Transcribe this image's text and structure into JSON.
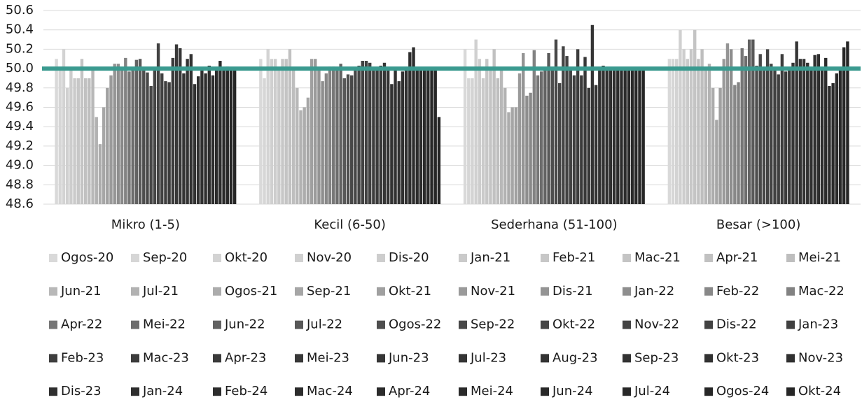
{
  "chart_data": {
    "type": "bar",
    "categories": [
      "Mikro (1-5)",
      "Kecil (6-50)",
      "Sederhana (51-100)",
      "Besar (>100)"
    ],
    "ylim": [
      48.6,
      50.6
    ],
    "yticks": [
      48.6,
      48.8,
      {
        "value": 49,
        "label": "49.0"
      },
      49.2,
      49.4,
      49.6,
      49.8,
      {
        "value": 50,
        "label": "50.0"
      },
      50.2,
      50.4,
      50.6
    ],
    "grid": true,
    "reference_line": {
      "value": 50,
      "color": "#3a9a8f"
    },
    "series": [
      {
        "name": "Ogos-20",
        "color": "#d9d9d9",
        "values": [
          50.1,
          50.1,
          50.2,
          50.1
        ]
      },
      {
        "name": "Sep-20",
        "color": "#d6d6d6",
        "values": [
          50.0,
          49.9,
          49.9,
          50.1
        ]
      },
      {
        "name": "Okt-20",
        "color": "#d3d3d3",
        "values": [
          50.2,
          50.2,
          49.9,
          50.1
        ]
      },
      {
        "name": "Nov-20",
        "color": "#d0d0d0",
        "values": [
          49.8,
          50.1,
          50.3,
          50.4
        ]
      },
      {
        "name": "Dis-20",
        "color": "#cdcdcd",
        "values": [
          50.0,
          50.1,
          50.1,
          50.2
        ]
      },
      {
        "name": "Jan-21",
        "color": "#cacaca",
        "values": [
          49.9,
          50.0,
          49.9,
          50.1
        ]
      },
      {
        "name": "Feb-21",
        "color": "#c7c7c7",
        "values": [
          49.9,
          50.1,
          50.1,
          50.2
        ]
      },
      {
        "name": "Mac-21",
        "color": "#c4c4c4",
        "values": [
          50.1,
          50.1,
          50.0,
          50.4
        ]
      },
      {
        "name": "Apr-21",
        "color": "#c1c1c1",
        "values": [
          49.9,
          50.2,
          50.2,
          50.1
        ]
      },
      {
        "name": "Mei-21",
        "color": "#bebebe",
        "values": [
          49.9,
          50.0,
          49.9,
          50.2
        ]
      },
      {
        "name": "Jun-21",
        "color": "#b8b8b8",
        "values": [
          50.0,
          49.8,
          49.98,
          50.0
        ]
      },
      {
        "name": "Jul-21",
        "color": "#b2b2b2",
        "values": [
          49.5,
          49.57,
          49.8,
          50.05
        ]
      },
      {
        "name": "Ogos-21",
        "color": "#acacac",
        "values": [
          49.22,
          49.6,
          49.55,
          49.8
        ]
      },
      {
        "name": "Sep-21",
        "color": "#a6a6a6",
        "values": [
          49.6,
          49.7,
          49.6,
          49.47
        ]
      },
      {
        "name": "Okt-21",
        "color": "#a0a0a0",
        "values": [
          49.8,
          50.1,
          49.6,
          49.8
        ]
      },
      {
        "name": "Nov-21",
        "color": "#9a9a9a",
        "values": [
          49.93,
          50.1,
          49.95,
          50.1
        ]
      },
      {
        "name": "Dis-21",
        "color": "#949494",
        "values": [
          50.05,
          49.98,
          50.16,
          50.26
        ]
      },
      {
        "name": "Jan-22",
        "color": "#8e8e8e",
        "values": [
          50.05,
          49.87,
          49.72,
          50.2
        ]
      },
      {
        "name": "Feb-22",
        "color": "#888888",
        "values": [
          50.0,
          49.95,
          49.75,
          49.83
        ]
      },
      {
        "name": "Mac-22",
        "color": "#828282",
        "values": [
          50.11,
          50.02,
          50.19,
          49.86
        ]
      },
      {
        "name": "Apr-22",
        "color": "#767676",
        "values": [
          49.97,
          50.02,
          49.93,
          50.21
        ]
      },
      {
        "name": "Mei-22",
        "color": "#6c6c6c",
        "values": [
          50.0,
          50.0,
          49.97,
          50.13
        ]
      },
      {
        "name": "Jun-22",
        "color": "#626262",
        "values": [
          50.09,
          50.05,
          50.0,
          50.3
        ]
      },
      {
        "name": "Jul-22",
        "color": "#585858",
        "values": [
          50.1,
          49.9,
          50.16,
          50.3
        ]
      },
      {
        "name": "Ogos-22",
        "color": "#4e4e4e",
        "values": [
          50.0,
          49.94,
          50.0,
          50.03
        ]
      },
      {
        "name": "Sep-22",
        "color": "#484848",
        "values": [
          49.96,
          49.93,
          50.3,
          50.15
        ]
      },
      {
        "name": "Okt-22",
        "color": "#464646",
        "values": [
          49.82,
          50.0,
          49.85,
          50.0
        ]
      },
      {
        "name": "Nov-22",
        "color": "#444444",
        "values": [
          50.0,
          50.03,
          50.23,
          50.2
        ]
      },
      {
        "name": "Dis-22",
        "color": "#424242",
        "values": [
          50.26,
          50.08,
          50.13,
          50.05
        ]
      },
      {
        "name": "Jan-23",
        "color": "#404040",
        "values": [
          49.95,
          50.08,
          50.0,
          50.0
        ]
      },
      {
        "name": "Feb-23",
        "color": "#3e3e3e",
        "values": [
          49.87,
          50.06,
          49.93,
          49.94
        ]
      },
      {
        "name": "Mac-23",
        "color": "#3c3c3c",
        "values": [
          49.86,
          49.98,
          50.2,
          50.15
        ]
      },
      {
        "name": "Apr-23",
        "color": "#3a3a3a",
        "values": [
          50.11,
          50.0,
          49.93,
          49.97
        ]
      },
      {
        "name": "Mei-23",
        "color": "#383838",
        "values": [
          50.25,
          50.03,
          50.12,
          49.99
        ]
      },
      {
        "name": "Jun-23",
        "color": "#363636",
        "values": [
          50.21,
          50.06,
          49.8,
          50.06
        ]
      },
      {
        "name": "Jul-23",
        "color": "#343434",
        "values": [
          49.95,
          50.0,
          50.45,
          50.28
        ]
      },
      {
        "name": "Aug-23",
        "color": "#333333",
        "values": [
          50.1,
          49.84,
          49.83,
          50.1
        ]
      },
      {
        "name": "Sep-23",
        "color": "#323232",
        "values": [
          50.15,
          50.0,
          50.0,
          50.1
        ]
      },
      {
        "name": "Okt-23",
        "color": "#313131",
        "values": [
          49.84,
          49.87,
          50.03,
          50.06
        ]
      },
      {
        "name": "Nov-23",
        "color": "#303030",
        "values": [
          49.92,
          49.97,
          50.0,
          50.0
        ]
      },
      {
        "name": "Dis-23",
        "color": "#2f2f2f",
        "values": [
          50.0,
          50.0,
          49.98,
          50.14
        ]
      },
      {
        "name": "Jan-24",
        "color": "#2e2e2e",
        "values": [
          49.95,
          50.17,
          50.0,
          50.15
        ]
      },
      {
        "name": "Feb-24",
        "color": "#2d2d2d",
        "values": [
          50.03,
          50.22,
          50.0,
          50.0
        ]
      },
      {
        "name": "Mac-24",
        "color": "#2c2c2c",
        "values": [
          49.93,
          50.0,
          49.98,
          50.11
        ]
      },
      {
        "name": "Apr-24",
        "color": "#2b2b2b",
        "values": [
          50.0,
          50.0,
          50.0,
          49.82
        ]
      },
      {
        "name": "Mei-24",
        "color": "#2a2a2a",
        "values": [
          50.08,
          50.0,
          50.0,
          49.85
        ]
      },
      {
        "name": "Jun-24",
        "color": "#292929",
        "values": [
          49.98,
          49.98,
          49.98,
          49.95
        ]
      },
      {
        "name": "Jul-24",
        "color": "#282828",
        "values": [
          50.02,
          50.0,
          50.0,
          50.0
        ]
      },
      {
        "name": "Ogos-24",
        "color": "#272727",
        "values": [
          50.0,
          50.0,
          49.98,
          50.22
        ]
      },
      {
        "name": "Okt-24",
        "color": "#262626",
        "values": [
          49.98,
          49.5,
          50.0,
          50.28
        ]
      }
    ]
  }
}
